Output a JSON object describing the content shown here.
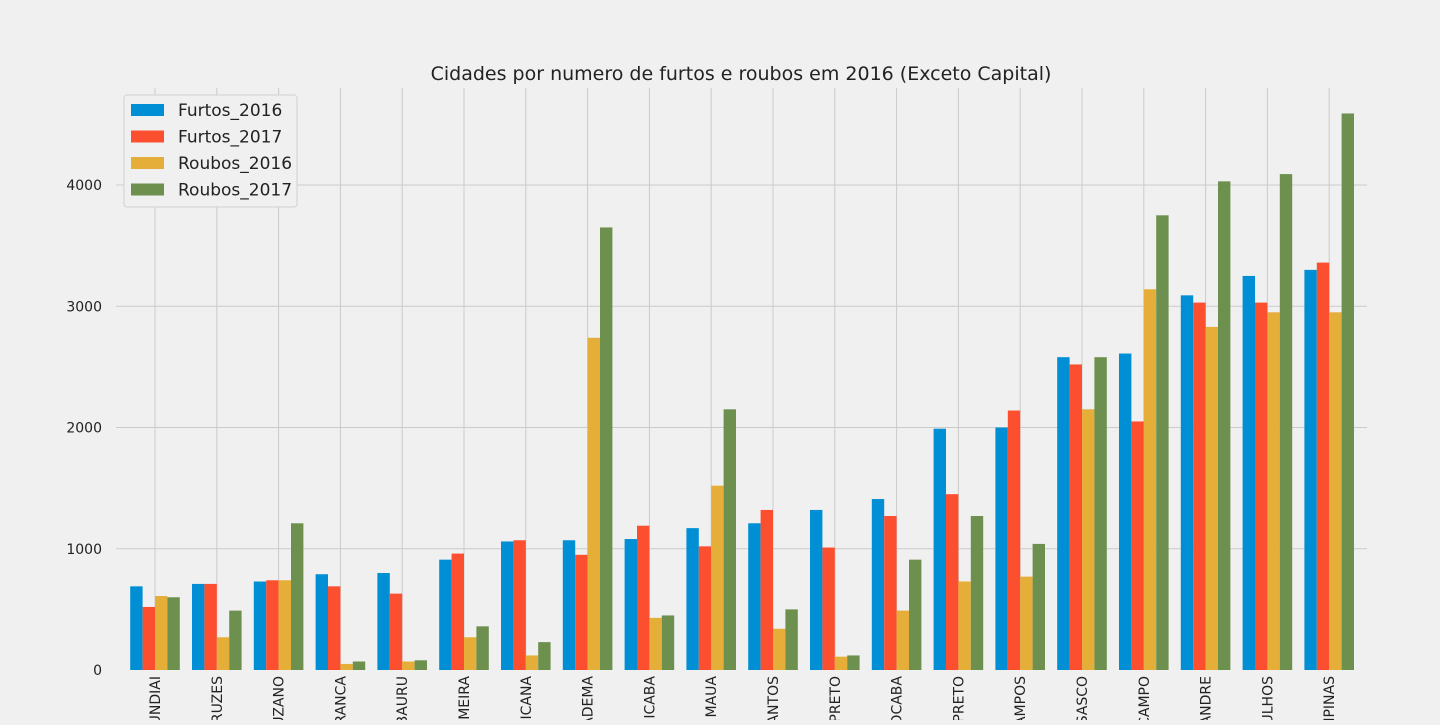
{
  "chart_data": {
    "type": "bar",
    "title": "Cidades por numero de furtos e roubos em 2016 (Exceto Capital)",
    "xlabel": "",
    "ylabel": "",
    "ylim": [
      0,
      4800
    ],
    "yticks": [
      0,
      1000,
      2000,
      3000,
      4000
    ],
    "grid": true,
    "legend_position": "top-left",
    "categories": [
      "UNDIAI",
      "RUZES",
      "UZANO",
      "RANCA",
      "BAURU",
      "MEIRA",
      "ICANA",
      "ADEMA",
      "ICABA",
      "MAUA",
      "ANTOS",
      "PRETO",
      "OCABA",
      "PRETO",
      "AMPOS",
      "SASCO",
      "CAMPO",
      "ANDRE",
      "ULHOS",
      "MPINAS"
    ],
    "series": [
      {
        "name": "Furtos_2016",
        "color": "#008fd5",
        "values": [
          690,
          710,
          730,
          790,
          800,
          910,
          1060,
          1070,
          1080,
          1170,
          1210,
          1320,
          1410,
          1990,
          2000,
          2580,
          2610,
          3090,
          3250,
          3300
        ]
      },
      {
        "name": "Furtos_2017",
        "color": "#fc4f30",
        "values": [
          520,
          710,
          740,
          690,
          630,
          960,
          1070,
          950,
          1190,
          1020,
          1320,
          1010,
          1270,
          1450,
          2140,
          2520,
          2050,
          3030,
          3030,
          3360
        ]
      },
      {
        "name": "Roubos_2016",
        "color": "#e5ae38",
        "values": [
          610,
          270,
          740,
          50,
          70,
          270,
          120,
          2740,
          430,
          1520,
          340,
          110,
          490,
          730,
          770,
          2150,
          3140,
          2830,
          2950,
          2950
        ]
      },
      {
        "name": "Roubos_2017",
        "color": "#6d904f",
        "values": [
          600,
          490,
          1210,
          70,
          80,
          360,
          230,
          3650,
          450,
          2150,
          500,
          120,
          910,
          1270,
          1040,
          2580,
          3750,
          4030,
          4090,
          4590
        ]
      }
    ]
  }
}
